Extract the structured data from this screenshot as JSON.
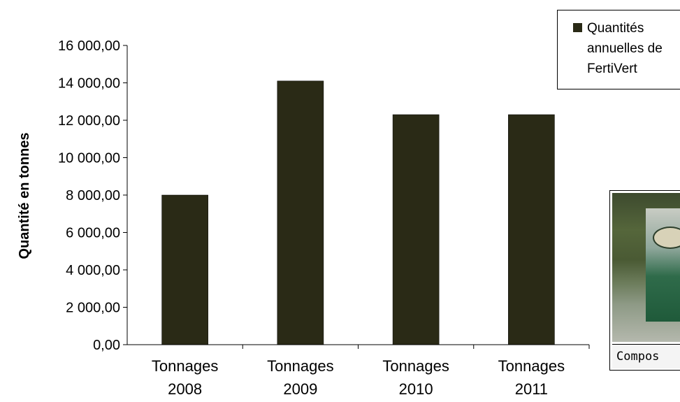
{
  "chart_data": {
    "type": "bar",
    "categories": [
      [
        "Tonnages",
        "2008"
      ],
      [
        "Tonnages",
        "2009"
      ],
      [
        "Tonnages",
        "2010"
      ],
      [
        "Tonnages",
        "2011"
      ]
    ],
    "series": [
      {
        "name": "Quantités annuelles de FertiVert",
        "values": [
          8000,
          14100,
          12300,
          12300
        ]
      }
    ],
    "ylabel": "Quantité en tonnes",
    "ylim": [
      0,
      16000
    ],
    "yticks": [
      {
        "value": 0,
        "label": "0,00"
      },
      {
        "value": 2000,
        "label": "2 000,00"
      },
      {
        "value": 4000,
        "label": "4 000,00"
      },
      {
        "value": 6000,
        "label": "6 000,00"
      },
      {
        "value": 8000,
        "label": "8 000,00"
      },
      {
        "value": 10000,
        "label": "10 000,00"
      },
      {
        "value": 12000,
        "label": "12 000,00"
      },
      {
        "value": 14000,
        "label": "14 000,00"
      },
      {
        "value": 16000,
        "label": "16 000,00"
      }
    ],
    "bar_color": "#2a2a16",
    "grid": false,
    "legend_position": "top-right"
  },
  "legend": {
    "label": "Quantités\nannuelles de\nFertiVert"
  },
  "photo": {
    "caption": "Compos"
  }
}
